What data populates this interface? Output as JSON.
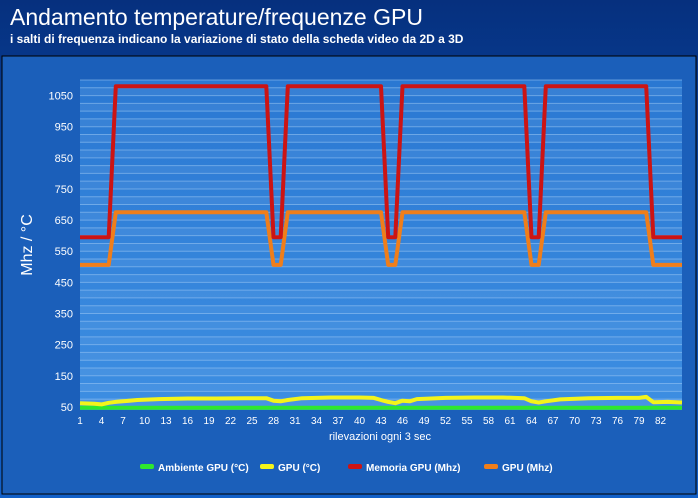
{
  "title": "Andamento temperature/frequenze GPU",
  "subtitle": "i salti di frequenza indicano la variazione di stato della scheda video da 2D a 3D",
  "chart_data": {
    "type": "line",
    "xlabel": "rilevazioni ogni 3 sec",
    "ylabel": "Mhz / °C",
    "ylim": [
      40,
      1100
    ],
    "yticks": [
      50,
      150,
      250,
      350,
      450,
      550,
      650,
      750,
      850,
      950,
      1050
    ],
    "xticks": [
      1,
      4,
      7,
      10,
      13,
      16,
      19,
      22,
      25,
      28,
      31,
      34,
      37,
      40,
      43,
      46,
      49,
      52,
      55,
      58,
      61,
      64,
      67,
      70,
      73,
      76,
      79,
      82
    ],
    "xlim": [
      1,
      85
    ],
    "grid": true,
    "legend": "bottom",
    "series": [
      {
        "name": "Ambiente GPU (°C)",
        "color": "#2ee82e",
        "points": [
          [
            1,
            47
          ],
          [
            85,
            47
          ]
        ]
      },
      {
        "name": "GPU (°C)",
        "color": "#f4f41a",
        "points": [
          [
            1,
            62
          ],
          [
            3,
            60
          ],
          [
            4,
            58
          ],
          [
            5,
            63
          ],
          [
            6,
            66
          ],
          [
            7,
            68
          ],
          [
            9,
            72
          ],
          [
            12,
            75
          ],
          [
            16,
            77
          ],
          [
            20,
            77
          ],
          [
            24,
            78
          ],
          [
            27,
            78
          ],
          [
            28,
            70
          ],
          [
            29,
            68
          ],
          [
            30,
            72
          ],
          [
            32,
            78
          ],
          [
            36,
            80
          ],
          [
            40,
            80
          ],
          [
            42,
            79
          ],
          [
            43,
            72
          ],
          [
            44,
            66
          ],
          [
            45,
            62
          ],
          [
            46,
            70
          ],
          [
            47,
            68
          ],
          [
            48,
            75
          ],
          [
            52,
            79
          ],
          [
            56,
            80
          ],
          [
            60,
            80
          ],
          [
            63,
            78
          ],
          [
            64,
            68
          ],
          [
            65,
            64
          ],
          [
            66,
            68
          ],
          [
            68,
            74
          ],
          [
            72,
            78
          ],
          [
            76,
            79
          ],
          [
            79,
            79
          ],
          [
            80,
            82
          ],
          [
            81,
            65
          ],
          [
            83,
            66
          ],
          [
            85,
            64
          ]
        ]
      },
      {
        "name": "Memoria GPU (Mhz)",
        "color": "#cc1414",
        "points": [
          [
            1,
            595
          ],
          [
            5,
            595
          ],
          [
            6,
            1080
          ],
          [
            27,
            1080
          ],
          [
            28,
            595
          ],
          [
            29,
            595
          ],
          [
            30,
            1080
          ],
          [
            43,
            1080
          ],
          [
            44,
            595
          ],
          [
            45,
            595
          ],
          [
            46,
            1080
          ],
          [
            63,
            1080
          ],
          [
            64,
            595
          ],
          [
            65,
            595
          ],
          [
            66,
            1080
          ],
          [
            80,
            1080
          ],
          [
            81,
            595
          ],
          [
            85,
            595
          ]
        ]
      },
      {
        "name": "GPU (Mhz)",
        "color": "#f07e1a",
        "points": [
          [
            1,
            506
          ],
          [
            5,
            506
          ],
          [
            6,
            675
          ],
          [
            27,
            675
          ],
          [
            28,
            506
          ],
          [
            29,
            506
          ],
          [
            30,
            675
          ],
          [
            43,
            675
          ],
          [
            44,
            506
          ],
          [
            45,
            506
          ],
          [
            46,
            675
          ],
          [
            63,
            675
          ],
          [
            64,
            506
          ],
          [
            65,
            506
          ],
          [
            66,
            675
          ],
          [
            80,
            675
          ],
          [
            81,
            506
          ],
          [
            85,
            506
          ]
        ]
      }
    ]
  }
}
